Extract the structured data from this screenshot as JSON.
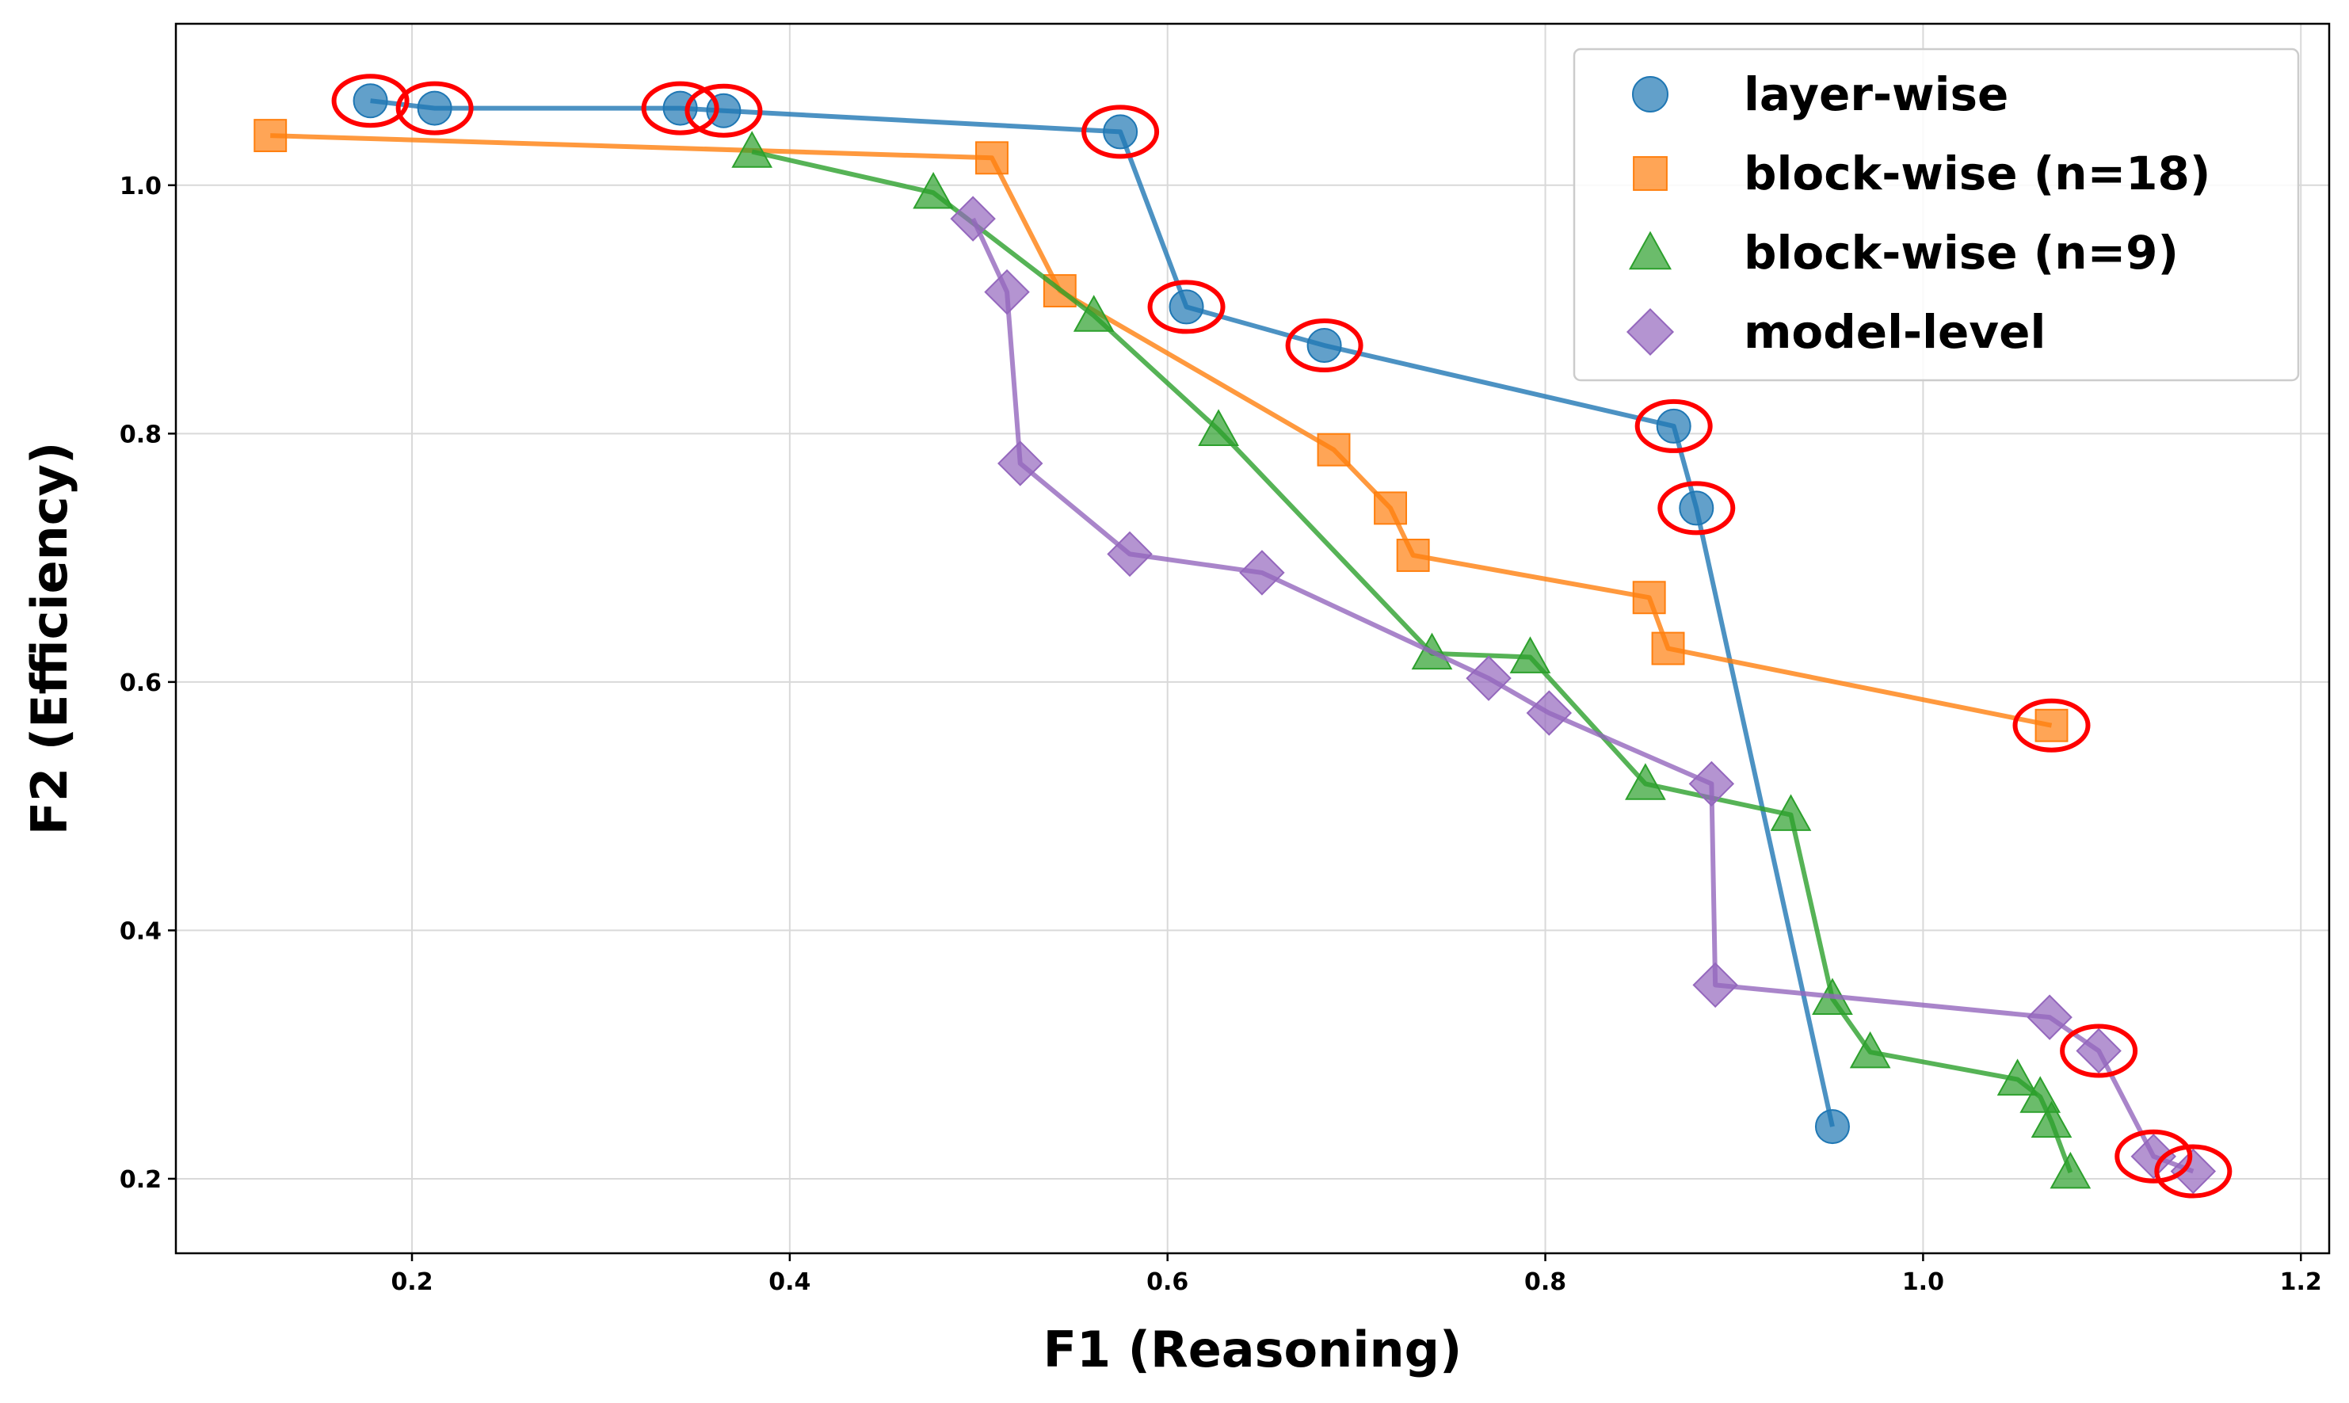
{
  "chart_data": {
    "type": "scatter",
    "title": "",
    "xlabel": "F1 (Reasoning)",
    "ylabel": "F2 (Efficiency)",
    "xlim": [
      0.075,
      1.215
    ],
    "ylim": [
      0.14,
      1.13
    ],
    "xticks": [
      0.2,
      0.4,
      0.6,
      0.8,
      1.0,
      1.2
    ],
    "yticks": [
      0.2,
      0.4,
      0.6,
      0.8,
      1.0
    ],
    "xtick_labels": [
      "0.2",
      "0.4",
      "0.6",
      "0.8",
      "1.0",
      "1.2"
    ],
    "ytick_labels": [
      "0.2",
      "0.4",
      "0.6",
      "0.8",
      "1.0"
    ],
    "grid": true,
    "legend_position": "top-right",
    "series": [
      {
        "name": "layer-wise",
        "marker": "circle",
        "color": "#1f77b4",
        "points": [
          [
            0.178,
            1.068
          ],
          [
            0.212,
            1.062
          ],
          [
            0.342,
            1.062
          ],
          [
            0.365,
            1.06
          ],
          [
            0.575,
            1.043
          ],
          [
            0.61,
            0.902
          ],
          [
            0.683,
            0.871
          ],
          [
            0.868,
            0.806
          ],
          [
            0.88,
            0.74
          ],
          [
            0.952,
            0.242
          ]
        ],
        "highlighted": [
          true,
          true,
          true,
          true,
          true,
          true,
          true,
          true,
          true,
          false
        ]
      },
      {
        "name": "block-wise (n=18)",
        "marker": "square",
        "color": "#ff7f0e",
        "points": [
          [
            0.125,
            1.04
          ],
          [
            0.507,
            1.022
          ],
          [
            0.543,
            0.915
          ],
          [
            0.688,
            0.787
          ],
          [
            0.718,
            0.74
          ],
          [
            0.73,
            0.702
          ],
          [
            0.855,
            0.668
          ],
          [
            0.865,
            0.627
          ],
          [
            1.068,
            0.565
          ]
        ],
        "highlighted": [
          false,
          false,
          false,
          false,
          false,
          false,
          false,
          false,
          true
        ]
      },
      {
        "name": "block-wise (n=9)",
        "marker": "triangle",
        "color": "#2ca02c",
        "points": [
          [
            0.38,
            1.027
          ],
          [
            0.476,
            0.994
          ],
          [
            0.561,
            0.895
          ],
          [
            0.627,
            0.803
          ],
          [
            0.74,
            0.623
          ],
          [
            0.792,
            0.62
          ],
          [
            0.853,
            0.518
          ],
          [
            0.93,
            0.493
          ],
          [
            0.952,
            0.345
          ],
          [
            0.972,
            0.302
          ],
          [
            1.05,
            0.28
          ],
          [
            1.062,
            0.266
          ],
          [
            1.068,
            0.246
          ],
          [
            1.078,
            0.205
          ]
        ],
        "highlighted": [
          false,
          false,
          false,
          false,
          false,
          false,
          false,
          false,
          false,
          false,
          false,
          false,
          false,
          false
        ]
      },
      {
        "name": "model-level",
        "marker": "diamond",
        "color": "#9467bd",
        "points": [
          [
            0.497,
            0.973
          ],
          [
            0.515,
            0.914
          ],
          [
            0.522,
            0.776
          ],
          [
            0.58,
            0.703
          ],
          [
            0.65,
            0.688
          ],
          [
            0.77,
            0.603
          ],
          [
            0.802,
            0.575
          ],
          [
            0.888,
            0.518
          ],
          [
            0.89,
            0.356
          ],
          [
            1.067,
            0.33
          ],
          [
            1.093,
            0.303
          ],
          [
            1.122,
            0.218
          ],
          [
            1.143,
            0.206
          ]
        ],
        "highlighted": [
          false,
          false,
          false,
          false,
          false,
          false,
          false,
          false,
          false,
          false,
          true,
          true,
          true
        ]
      }
    ]
  }
}
